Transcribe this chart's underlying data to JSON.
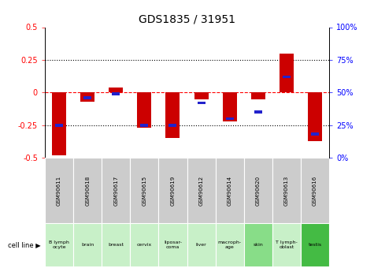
{
  "title": "GDS1835 / 31951",
  "samples": [
    "GSM90611",
    "GSM90618",
    "GSM90617",
    "GSM90615",
    "GSM90619",
    "GSM90612",
    "GSM90614",
    "GSM90620",
    "GSM90613",
    "GSM90616"
  ],
  "cell_lines": [
    "B lymph\nocyte",
    "brain",
    "breast",
    "cervix",
    "liposar-\ncoma",
    "liver",
    "macroph-\nage",
    "skin",
    "T lymph-\noblast",
    "testis"
  ],
  "cell_line_colors_alt": [
    "#ccffcc",
    "#99ee99"
  ],
  "log2_ratio": [
    -0.48,
    -0.07,
    0.04,
    -0.27,
    -0.35,
    -0.05,
    -0.22,
    -0.05,
    0.3,
    -0.37
  ],
  "percentile_rank": [
    25,
    46,
    49,
    25,
    25,
    42,
    30,
    35,
    62,
    18
  ],
  "ylim_left": [
    -0.5,
    0.5
  ],
  "ylim_right": [
    0,
    100
  ],
  "bar_color": "#cc0000",
  "dot_color": "#2222cc",
  "title_fontsize": 10,
  "tick_fontsize": 7,
  "gray_box": "#cccccc",
  "green_light": "#bbeebb",
  "green_dark": "#88cc88"
}
